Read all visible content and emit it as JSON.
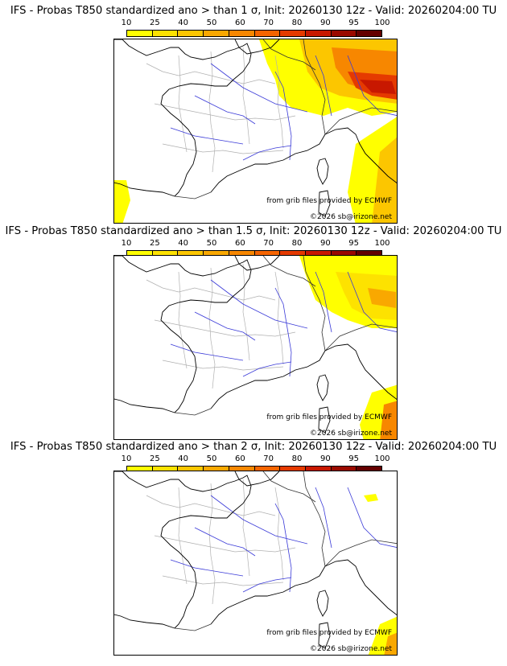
{
  "legend": {
    "ticks": [
      "10",
      "25",
      "40",
      "50",
      "60",
      "70",
      "80",
      "90",
      "95",
      "100"
    ],
    "colors": [
      "#ffff00",
      "#fde200",
      "#fcc600",
      "#f9a800",
      "#f78700",
      "#f56400",
      "#e53a00",
      "#c81800",
      "#9a0a00",
      "#640000"
    ]
  },
  "panels": [
    {
      "title": "IFS - Probas T850  standardized ano > than 1 σ, Init: 20260130 12z - Valid: 20260204:00 TU",
      "threshold_sigma": 1
    },
    {
      "title": "IFS - Probas T850  standardized ano > than 1.5 σ, Init: 20260130 12z - Valid: 20260204:00 TU",
      "threshold_sigma": 1.5
    },
    {
      "title": "IFS - Probas T850  standardized ano > than 2 σ, Init: 20260130 12z - Valid: 20260204:00 TU",
      "threshold_sigma": 2
    }
  ],
  "credits": {
    "source": "from grib files provided by ECMWF",
    "copyright": "©2026 sb@irizone.net"
  }
}
